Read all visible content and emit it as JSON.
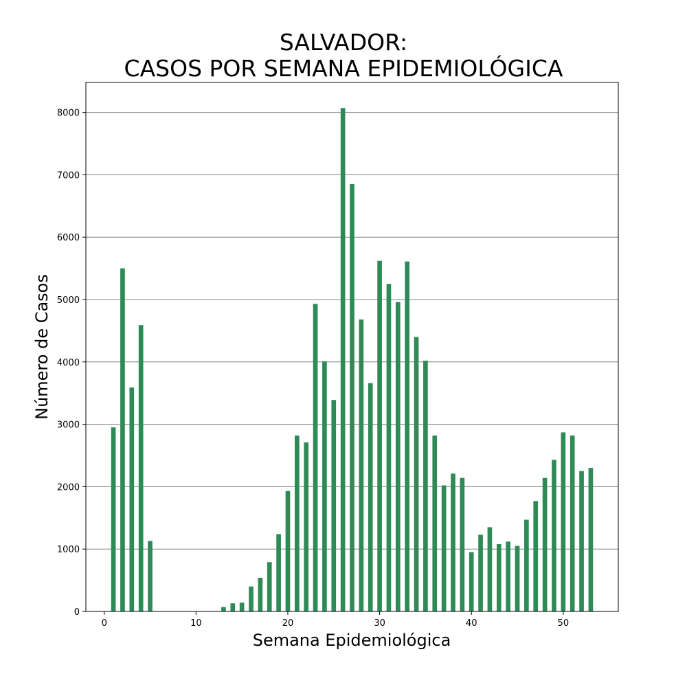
{
  "chart_data": {
    "type": "bar",
    "title_line1": "SALVADOR:",
    "title_line2": "CASOS POR SEMANA EPIDEMIOLÓGICA",
    "xlabel": "Semana Epidemiológica",
    "ylabel": "Número de Casos",
    "xlim": [
      -2,
      56
    ],
    "ylim": [
      0,
      8480
    ],
    "xticks": [
      0,
      10,
      20,
      30,
      40,
      50
    ],
    "yticks": [
      0,
      1000,
      2000,
      3000,
      4000,
      5000,
      6000,
      7000,
      8000
    ],
    "grid": "horizontal",
    "bar_color": "#2e8b57",
    "bar_width": 0.5,
    "x": [
      1,
      2,
      3,
      4,
      5,
      6,
      7,
      8,
      9,
      10,
      11,
      12,
      13,
      14,
      15,
      16,
      17,
      18,
      19,
      20,
      21,
      22,
      23,
      24,
      25,
      26,
      27,
      28,
      29,
      30,
      31,
      32,
      33,
      34,
      35,
      36,
      37,
      38,
      39,
      40,
      41,
      42,
      43,
      44,
      45,
      46,
      47,
      48,
      49,
      50,
      51,
      52,
      53
    ],
    "values": [
      2950,
      5500,
      3590,
      4590,
      1130,
      0,
      0,
      0,
      0,
      0,
      0,
      0,
      70,
      130,
      140,
      400,
      540,
      790,
      1240,
      1930,
      2820,
      2710,
      4930,
      4010,
      3390,
      8070,
      6850,
      4680,
      3660,
      5620,
      5250,
      4960,
      5610,
      4400,
      4020,
      2820,
      2020,
      2210,
      2140,
      950,
      1230,
      1350,
      1080,
      1120,
      1050,
      1470,
      1770,
      2140,
      2430,
      2870,
      2820,
      2250,
      2300
    ]
  }
}
